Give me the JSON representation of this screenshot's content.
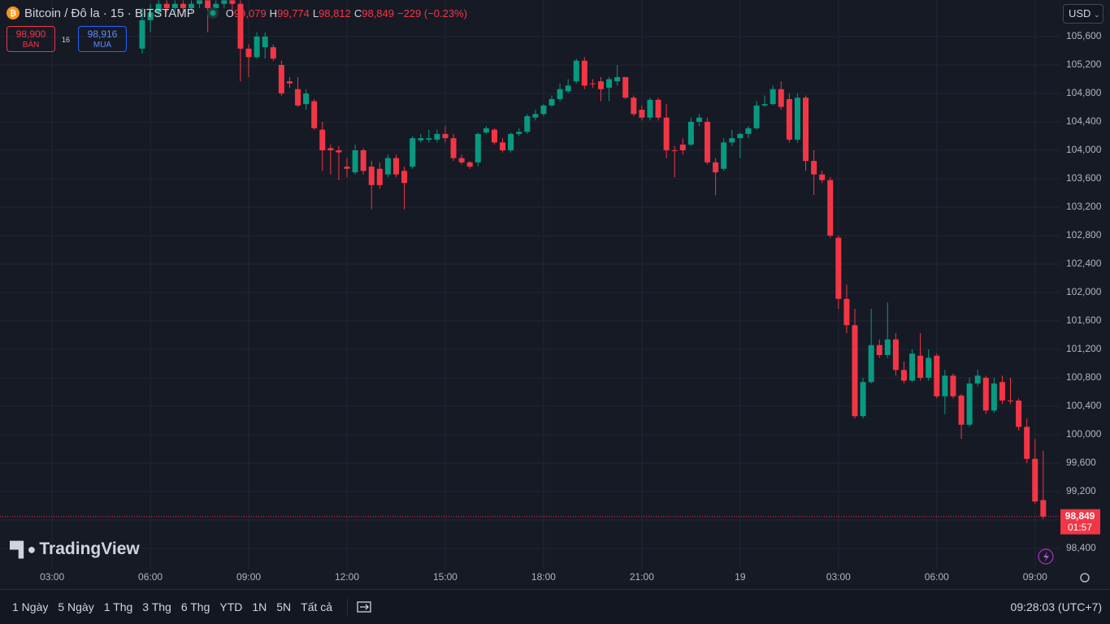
{
  "header": {
    "symbol": "Bitcoin / Đô la · 15 · BITSTAMP",
    "ohlc": [
      {
        "key": "O",
        "value": "99,079"
      },
      {
        "key": "H",
        "value": "99,774"
      },
      {
        "key": "L",
        "value": "98,812"
      },
      {
        "key": "C",
        "value": "98,849"
      }
    ],
    "change": "−229 (−0.23%)",
    "sell": {
      "price": "98,900",
      "label": "BÁN"
    },
    "spread": "16",
    "buy": {
      "price": "98,916",
      "label": "MUA"
    },
    "currency": "USD",
    "logo": "TradingView"
  },
  "footer": {
    "ranges": [
      "1 Ngày",
      "5 Ngày",
      "1 Thg",
      "3 Thg",
      "6 Thg",
      "YTD",
      "1N",
      "5N",
      "Tất cả"
    ],
    "clock": "09:28:03 (UTC+7)"
  },
  "chart_data": {
    "type": "candlestick",
    "up_color": "#089981",
    "down_color": "#f23645",
    "grid": true,
    "xlim": [
      -17.36,
      112.1
    ],
    "ylim": [
      98114,
      106114
    ],
    "xticks": [
      {
        "value": -11,
        "label": "03:00"
      },
      {
        "value": 1,
        "label": "06:00"
      },
      {
        "value": 13,
        "label": "09:00"
      },
      {
        "value": 25,
        "label": "12:00"
      },
      {
        "value": 37,
        "label": "15:00"
      },
      {
        "value": 49,
        "label": "18:00"
      },
      {
        "value": 61,
        "label": "21:00"
      },
      {
        "value": 73,
        "label": "19"
      },
      {
        "value": 85,
        "label": "03:00"
      },
      {
        "value": 97,
        "label": "06:00"
      },
      {
        "value": 109,
        "label": "09:00"
      }
    ],
    "yticks": [
      {
        "value": 98400,
        "label": "98,400"
      },
      {
        "value": 98800,
        "label": "98,800"
      },
      {
        "value": 99200,
        "label": "99,200"
      },
      {
        "value": 99600,
        "label": "99,600"
      },
      {
        "value": 100000,
        "label": "100,000"
      },
      {
        "value": 100400,
        "label": "100,400"
      },
      {
        "value": 100800,
        "label": "100,800"
      },
      {
        "value": 101200,
        "label": "101,200"
      },
      {
        "value": 101600,
        "label": "101,600"
      },
      {
        "value": 102000,
        "label": "102,000"
      },
      {
        "value": 102400,
        "label": "102,400"
      },
      {
        "value": 102800,
        "label": "102,800"
      },
      {
        "value": 103200,
        "label": "103,200"
      },
      {
        "value": 103600,
        "label": "103,600"
      },
      {
        "value": 104000,
        "label": "104,000"
      },
      {
        "value": 104400,
        "label": "104,400"
      },
      {
        "value": 104800,
        "label": "104,800"
      },
      {
        "value": 105200,
        "label": "105,200"
      },
      {
        "value": 105600,
        "label": "105,600"
      }
    ],
    "last_price_label": "98,849",
    "countdown": "01:57",
    "open": [
      105430,
      105830,
      105940,
      106060,
      106000,
      106060,
      106000,
      106060,
      106110,
      106000,
      106060,
      106110,
      106060,
      105430,
      105310,
      105450,
      105450,
      105200,
      104970,
      104860,
      104650,
      104690,
      104290,
      104030,
      104000,
      103770,
      103690,
      104000,
      103770,
      103740,
      103660,
      103890,
      103710,
      103770,
      104140,
      104150,
      104150,
      104230,
      104170,
      103890,
      103830,
      103830,
      104250,
      104290,
      104110,
      104000,
      104230,
      104260,
      104460,
      104510,
      104630,
      104720,
      104830,
      104970,
      105260,
      104940,
      104970,
      104880,
      104970,
      105030,
      104740,
      104570,
      104460,
      104710,
      104460,
      104000,
      104080,
      104080,
      104400,
      104400,
      103830,
      103740,
      104110,
      104170,
      104230,
      104310,
      104630,
      104650,
      104860,
      104720,
      104150,
      104740,
      103850,
      103660,
      103580,
      102770,
      101910,
      101540,
      100260,
      100740,
      101260,
      101120,
      101340,
      100910,
      100760,
      101110,
      100800,
      101110,
      100540,
      100830,
      100550,
      100140,
      100720,
      100800,
      100340,
      100740,
      100480,
      100480,
      100110,
      99660,
      99079
    ],
    "high": [
      106000,
      106060,
      106110,
      106110,
      106110,
      106110,
      106110,
      106110,
      106110,
      106110,
      106110,
      106110,
      106110,
      105490,
      105660,
      105660,
      105490,
      105260,
      105030,
      105030,
      104860,
      104720,
      104400,
      104080,
      104060,
      103890,
      104080,
      104030,
      103850,
      103830,
      103940,
      103940,
      103770,
      104200,
      104230,
      104290,
      104290,
      104340,
      104230,
      103940,
      103850,
      104250,
      104340,
      104310,
      104170,
      104250,
      104310,
      104510,
      104570,
      104650,
      104770,
      104940,
      105000,
      105290,
      105310,
      105000,
      105030,
      105030,
      105200,
      105030,
      104770,
      104630,
      104740,
      104740,
      104650,
      104060,
      104170,
      104460,
      104510,
      104460,
      103890,
      104170,
      104290,
      104250,
      104340,
      104690,
      104770,
      104910,
      104970,
      104800,
      104800,
      104770,
      104000,
      103710,
      103620,
      102800,
      102110,
      101770,
      100800,
      101770,
      101340,
      101860,
      101430,
      101030,
      101200,
      101430,
      101200,
      101140,
      100910,
      100860,
      100570,
      100800,
      100910,
      100830,
      100800,
      100830,
      100800,
      100510,
      100230,
      99940,
      99774
    ],
    "low": [
      105360,
      105660,
      105890,
      105940,
      105940,
      105890,
      105940,
      106000,
      105660,
      105940,
      106000,
      105890,
      104970,
      105030,
      105290,
      105290,
      105260,
      104770,
      104880,
      104610,
      104570,
      104290,
      103710,
      103660,
      103580,
      103620,
      103660,
      103660,
      103170,
      103460,
      103620,
      103620,
      103170,
      103740,
      104110,
      104110,
      104110,
      104110,
      103850,
      103800,
      103740,
      103770,
      104230,
      104080,
      103970,
      103970,
      104200,
      104230,
      104420,
      104480,
      104610,
      104690,
      104800,
      104940,
      104860,
      104880,
      104690,
      104690,
      104910,
      104720,
      104480,
      104420,
      104420,
      104420,
      103890,
      103620,
      103940,
      104060,
      104340,
      103800,
      103370,
      103710,
      104060,
      103890,
      104170,
      104290,
      104610,
      104630,
      104570,
      104110,
      104110,
      103710,
      103370,
      103540,
      102770,
      101770,
      101430,
      100230,
      100230,
      100720,
      101080,
      101080,
      100830,
      100720,
      100740,
      100760,
      100760,
      100510,
      100290,
      100510,
      99940,
      100110,
      100680,
      100290,
      100310,
      100430,
      100430,
      100060,
      99600,
      99030,
      98812
    ],
    "close": [
      105830,
      105940,
      106060,
      106000,
      106060,
      106000,
      106060,
      106110,
      106000,
      106060,
      106110,
      106060,
      105430,
      105310,
      105600,
      105600,
      105290,
      104800,
      104940,
      104630,
      104800,
      104310,
      104000,
      104000,
      103970,
      103740,
      104000,
      103710,
      103510,
      103510,
      103890,
      103660,
      103540,
      104170,
      104170,
      104170,
      104230,
      104170,
      103890,
      103830,
      103770,
      104230,
      104310,
      104110,
      104000,
      104230,
      104260,
      104480,
      104510,
      104630,
      104720,
      104860,
      104910,
      105260,
      104910,
      104930,
      104860,
      105000,
      105030,
      104740,
      104510,
      104460,
      104710,
      104460,
      104000,
      103990,
      104000,
      104400,
      104460,
      103830,
      103690,
      104110,
      104170,
      104230,
      104310,
      104630,
      104650,
      104860,
      104610,
      104150,
      104740,
      103850,
      103660,
      103580,
      102800,
      101910,
      101540,
      100260,
      100740,
      101260,
      101120,
      101340,
      100910,
      100760,
      101140,
      100800,
      101080,
      100540,
      100830,
      100540,
      100140,
      100720,
      100830,
      100340,
      100720,
      100480,
      100470,
      100110,
      99660,
      99060,
      98849
    ]
  }
}
